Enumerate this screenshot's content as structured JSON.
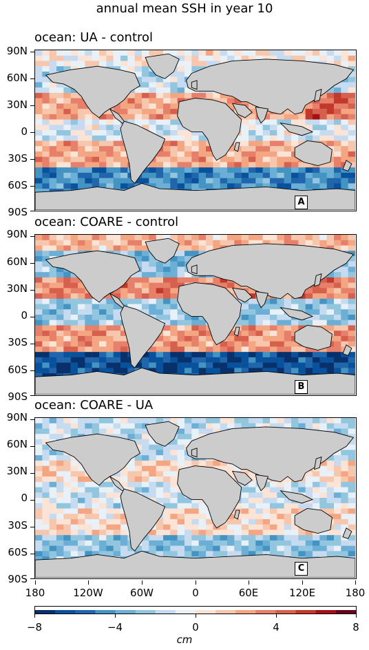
{
  "title": "annual mean SSH in year 10",
  "panels": [
    {
      "title": "ocean: UA - control",
      "label": "A"
    },
    {
      "title": "ocean: COARE - control",
      "label": "B"
    },
    {
      "title": "ocean: COARE - UA",
      "label": "C"
    }
  ],
  "y_ticks": [
    "90N",
    "60N",
    "30N",
    "0",
    "30S",
    "60S",
    "90S"
  ],
  "x_ticks": [
    "180",
    "120W",
    "60W",
    "0",
    "60E",
    "120E",
    "180"
  ],
  "colorbar": {
    "ticks": [
      "−8",
      "−4",
      "0",
      "4",
      "8"
    ],
    "unit": "cm",
    "colors": [
      "#08306b",
      "#08519c",
      "#2166ac",
      "#4393c3",
      "#6baed6",
      "#92c5de",
      "#c6dbef",
      "#e8f1f8",
      "#fbe3d6",
      "#f6c6ad",
      "#f4a582",
      "#e7806a",
      "#d6604d",
      "#c0392b",
      "#a50f15",
      "#67001f"
    ]
  },
  "land_color": "#cccccc",
  "coastline_color": "#000000"
}
